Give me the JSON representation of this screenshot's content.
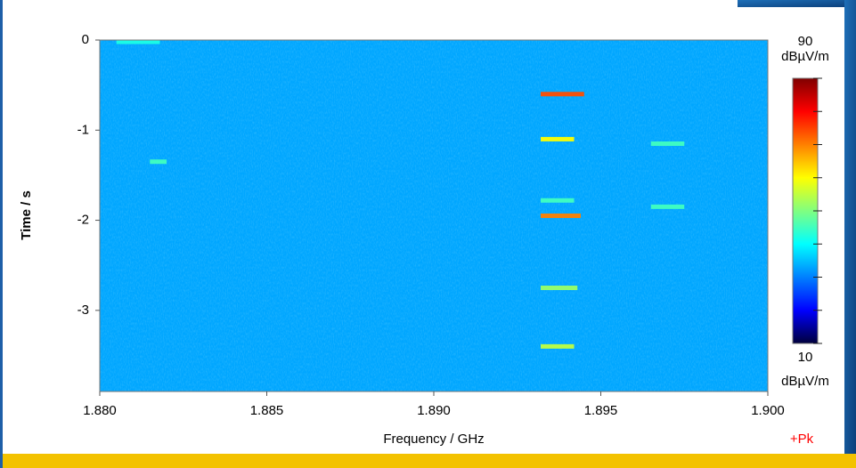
{
  "chart_data": {
    "type": "spectrogram",
    "xlabel": "Frequency / GHz",
    "ylabel": "Time / s",
    "xlim": [
      1.88,
      1.9
    ],
    "xticks": [
      {
        "value": 1.88,
        "label": "1.880"
      },
      {
        "value": 1.885,
        "label": "1.885"
      },
      {
        "value": 1.89,
        "label": "1.890"
      },
      {
        "value": 1.895,
        "label": "1.895"
      },
      {
        "value": 1.9,
        "label": "1.900"
      }
    ],
    "ylim": [
      -3.9,
      0
    ],
    "yticks": [
      0,
      -1,
      -2,
      -3
    ],
    "clim": [
      10,
      90
    ],
    "cticks": [
      10,
      20,
      30,
      40,
      50,
      60,
      70,
      80,
      90
    ],
    "cunit": "dBµV/m",
    "colormap": [
      "#00003c",
      "#0000ff",
      "#0080ff",
      "#00ffff",
      "#80ff80",
      "#ffff00",
      "#ff8000",
      "#ff0000",
      "#800000"
    ],
    "background_level": 33,
    "detector": "+Pk",
    "detector_color": "#ff0000",
    "events": [
      {
        "freq": [
          1.8932,
          1.8945
        ],
        "time": -0.6,
        "level": 74
      },
      {
        "freq": [
          1.8932,
          1.8942
        ],
        "time": -1.1,
        "level": 60
      },
      {
        "freq": [
          1.8932,
          1.8942
        ],
        "time": -1.78,
        "level": 45
      },
      {
        "freq": [
          1.8932,
          1.8944
        ],
        "time": -1.95,
        "level": 70
      },
      {
        "freq": [
          1.8932,
          1.8943
        ],
        "time": -2.75,
        "level": 52
      },
      {
        "freq": [
          1.8932,
          1.8942
        ],
        "time": -3.4,
        "level": 55
      },
      {
        "freq": [
          1.8965,
          1.8975
        ],
        "time": -1.15,
        "level": 45
      },
      {
        "freq": [
          1.8965,
          1.8975
        ],
        "time": -1.85,
        "level": 45
      },
      {
        "freq": [
          1.8815,
          1.882
        ],
        "time": -1.35,
        "level": 45
      },
      {
        "freq": [
          1.8805,
          1.8818
        ],
        "time": -0.02,
        "level": 42
      }
    ]
  }
}
